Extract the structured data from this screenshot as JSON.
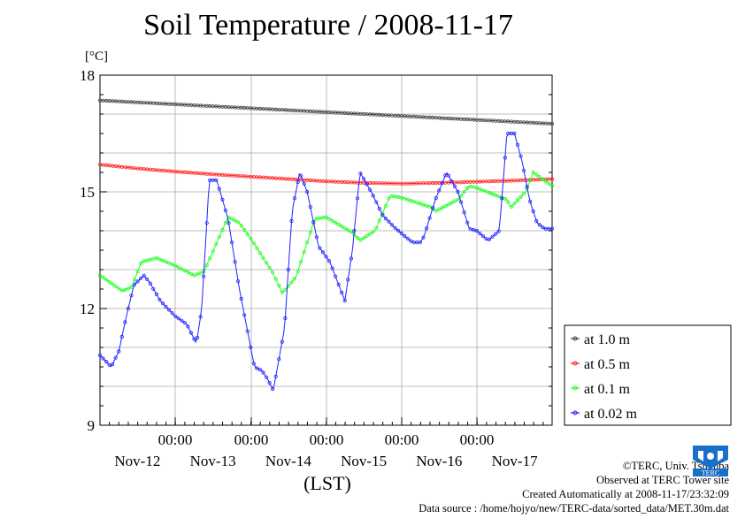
{
  "chart_data": {
    "type": "line",
    "title": "Soil Temperature / 2008-11-17",
    "ylabel": "[°C]",
    "xlabel": "(LST)",
    "ylim": [
      9,
      18
    ],
    "yticks": [
      9,
      12,
      15,
      18
    ],
    "x_tick_time_labels": [
      "00:00",
      "00:00",
      "00:00",
      "00:00",
      "00:00"
    ],
    "x_tick_date_labels": [
      "Nov-12",
      "Nov-13",
      "Nov-14",
      "Nov-15",
      "Nov-16",
      "Nov-17"
    ],
    "grid": true,
    "legend_position": "right",
    "series": [
      {
        "name": "at 1.0 m",
        "color": "#404040",
        "x": [
          0,
          2,
          4,
          6
        ],
        "values": [
          17.35,
          17.15,
          16.95,
          16.75
        ]
      },
      {
        "name": "at 0.5 m",
        "color": "#ff2020",
        "x": [
          0,
          0.5,
          1,
          1.5,
          2,
          2.5,
          3,
          3.5,
          4,
          4.5,
          5,
          5.5,
          6
        ],
        "values": [
          15.7,
          15.6,
          15.52,
          15.45,
          15.39,
          15.33,
          15.27,
          15.23,
          15.21,
          15.23,
          15.26,
          15.29,
          15.33
        ]
      },
      {
        "name": "at 0.1 m",
        "color": "#20ff20",
        "x": [
          0,
          0.3,
          0.42,
          0.55,
          0.75,
          1.0,
          1.25,
          1.38,
          1.7,
          1.85,
          2.0,
          2.3,
          2.42,
          2.6,
          2.85,
          3.0,
          3.35,
          3.45,
          3.65,
          3.85,
          4.0,
          4.4,
          4.45,
          4.75,
          4.9,
          5.0,
          5.4,
          5.45,
          5.65,
          5.75,
          6.0
        ],
        "values": [
          12.85,
          12.45,
          12.55,
          13.2,
          13.3,
          13.1,
          12.85,
          12.95,
          14.35,
          14.2,
          13.8,
          12.9,
          12.4,
          12.8,
          14.3,
          14.35,
          13.95,
          13.75,
          14.0,
          14.9,
          14.85,
          14.6,
          14.5,
          14.8,
          15.15,
          15.1,
          14.8,
          14.6,
          15.0,
          15.5,
          15.15
        ]
      },
      {
        "name": "at 0.02 m",
        "color": "#2020ff",
        "x": [
          0,
          0.15,
          0.25,
          0.35,
          0.45,
          0.58,
          0.65,
          0.8,
          1.0,
          1.15,
          1.28,
          1.35,
          1.45,
          1.55,
          1.7,
          1.85,
          2.05,
          2.15,
          2.22,
          2.3,
          2.45,
          2.55,
          2.65,
          2.75,
          2.9,
          3.05,
          3.15,
          3.25,
          3.35,
          3.45,
          3.6,
          3.75,
          3.9,
          4.05,
          4.15,
          4.25,
          4.3,
          4.45,
          4.6,
          4.75,
          4.9,
          5.0,
          5.15,
          5.3,
          5.4,
          5.5,
          5.6,
          5.7,
          5.8,
          5.9,
          6.0
        ],
        "values": [
          10.8,
          10.5,
          10.9,
          11.8,
          12.6,
          12.85,
          12.7,
          12.2,
          11.8,
          11.6,
          11.1,
          12.0,
          15.3,
          15.3,
          14.3,
          12.5,
          10.5,
          10.4,
          10.2,
          9.9,
          11.5,
          14.5,
          15.5,
          15.0,
          13.6,
          13.2,
          12.7,
          12.2,
          13.5,
          15.5,
          15.0,
          14.4,
          14.1,
          13.85,
          13.7,
          13.7,
          13.85,
          14.8,
          15.5,
          15.0,
          14.05,
          14.0,
          13.75,
          14.0,
          16.5,
          16.5,
          15.8,
          14.8,
          14.2,
          14.05,
          14.05
        ]
      }
    ]
  },
  "credits": {
    "copyright": "©TERC, Univ. Tsukuba",
    "site": "Observed at TERC Tower site",
    "created": "Created Automatically at 2008-11-17/23:32:09",
    "source": "Data source : /home/hojyo/new/TERC-data/sorted_data/MET.30m.dat"
  },
  "logo_text": "TERC"
}
